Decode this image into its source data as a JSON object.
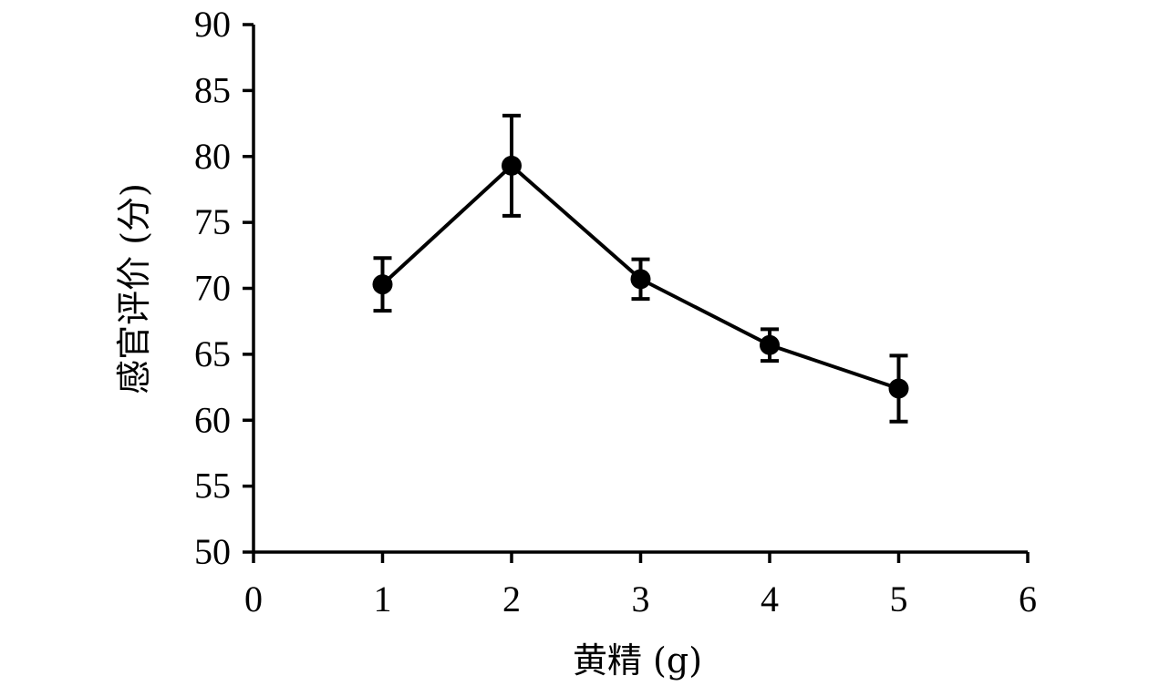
{
  "chart_data": {
    "type": "line",
    "title": "",
    "xlabel": "黄精 (g)",
    "ylabel": "感官评价 (分)",
    "xlim": [
      0,
      6
    ],
    "ylim": [
      50,
      90
    ],
    "x_ticks": [
      "0",
      "1",
      "2",
      "3",
      "4",
      "5",
      "6"
    ],
    "y_ticks": [
      "50",
      "55",
      "60",
      "65",
      "70",
      "75",
      "80",
      "85",
      "90"
    ],
    "grid": false,
    "legend": "none",
    "series": [
      {
        "x": [
          1,
          2,
          3,
          4,
          5
        ],
        "y": [
          70.3,
          79.3,
          70.7,
          65.7,
          62.4
        ],
        "error": [
          2.0,
          3.8,
          1.5,
          1.2,
          2.5
        ],
        "color": "#000000",
        "marker": "circle"
      }
    ]
  }
}
